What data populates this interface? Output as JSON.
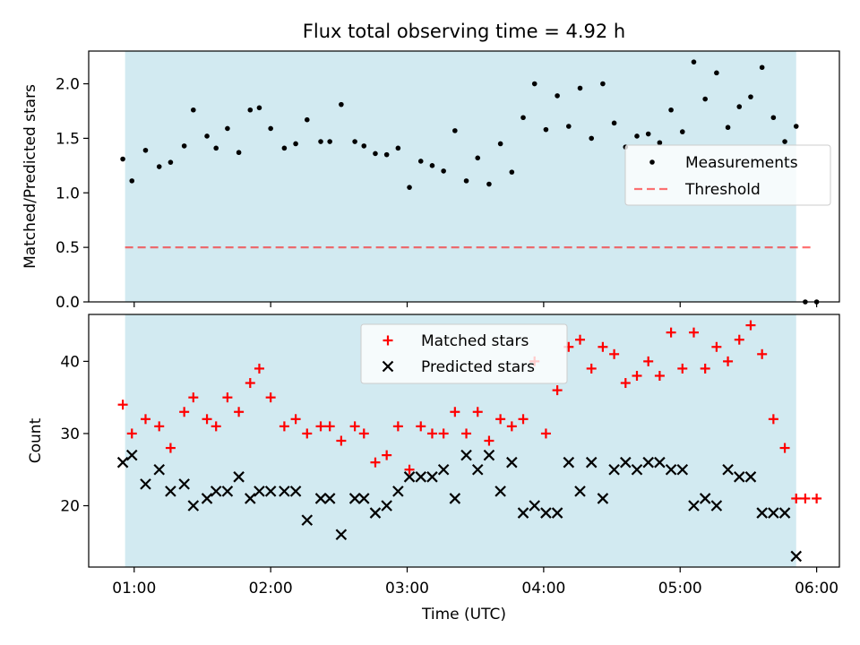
{
  "title": "Flux total observing time = 4.92 h",
  "xlabel": "Time (UTC)",
  "x_ticks": [
    "01:00",
    "02:00",
    "03:00",
    "04:00",
    "05:00",
    "06:00"
  ],
  "colors": {
    "shade": "#add8e6",
    "threshold": "#ff0000",
    "matched": "#ff0000",
    "predicted": "#000000",
    "measure": "#000000"
  },
  "chart_data": [
    {
      "type": "scatter",
      "ylabel": "Matched/Predicted stars",
      "ylim": [
        0,
        2.3
      ],
      "xlim": [
        "00:40",
        "06:10"
      ],
      "y_ticks": [
        "0.0",
        "0.5",
        "1.0",
        "1.5",
        "2.0"
      ],
      "observing_window": [
        "00:56",
        "05:51"
      ],
      "threshold": {
        "name": "Threshold",
        "value": 0.5,
        "x_range": [
          "00:56",
          "05:59"
        ]
      },
      "legend": {
        "position": "center-right",
        "entries": [
          "Measurements",
          "Threshold"
        ]
      },
      "series": [
        {
          "name": "Measurements",
          "x": [
            "00:55",
            "00:59",
            "01:05",
            "01:11",
            "01:16",
            "01:22",
            "01:26",
            "01:32",
            "01:36",
            "01:41",
            "01:46",
            "01:51",
            "01:55",
            "02:00",
            "02:06",
            "02:11",
            "02:16",
            "02:22",
            "02:26",
            "02:31",
            "02:37",
            "02:41",
            "02:46",
            "02:51",
            "02:56",
            "03:01",
            "03:06",
            "03:11",
            "03:16",
            "03:21",
            "03:26",
            "03:31",
            "03:36",
            "03:41",
            "03:46",
            "03:51",
            "03:56",
            "04:01",
            "04:06",
            "04:11",
            "04:16",
            "04:21",
            "04:26",
            "04:31",
            "04:36",
            "04:41",
            "04:46",
            "04:51",
            "04:56",
            "05:01",
            "05:06",
            "05:11",
            "05:16",
            "05:21",
            "05:26",
            "05:31",
            "05:36",
            "05:41",
            "05:46",
            "05:51",
            "05:55",
            "06:00"
          ],
          "y": [
            1.31,
            1.11,
            1.39,
            1.24,
            1.28,
            1.43,
            1.76,
            1.52,
            1.41,
            1.59,
            1.37,
            1.76,
            1.78,
            1.59,
            1.41,
            1.45,
            1.67,
            1.47,
            1.47,
            1.81,
            1.47,
            1.43,
            1.36,
            1.35,
            1.41,
            1.05,
            1.29,
            1.25,
            1.2,
            1.57,
            1.11,
            1.32,
            1.08,
            1.45,
            1.19,
            1.69,
            2.0,
            1.58,
            1.89,
            1.61,
            1.96,
            1.5,
            2.0,
            1.64,
            1.42,
            1.52,
            1.54,
            1.46,
            1.76,
            1.56,
            2.2,
            1.86,
            2.1,
            1.6,
            1.79,
            1.88,
            2.15,
            1.69,
            1.47,
            1.61,
            0.0,
            0.0
          ]
        }
      ]
    },
    {
      "type": "scatter",
      "ylabel": "Count",
      "ylim": [
        11.5,
        46.5
      ],
      "xlim": [
        "00:40",
        "06:10"
      ],
      "y_ticks": [
        "20",
        "30",
        "40"
      ],
      "observing_window": [
        "00:56",
        "05:51"
      ],
      "legend": {
        "position": "top-center",
        "entries": [
          "Matched stars",
          "Predicted stars"
        ]
      },
      "series": [
        {
          "name": "Matched stars",
          "x": [
            "00:55",
            "00:59",
            "01:05",
            "01:11",
            "01:16",
            "01:22",
            "01:26",
            "01:32",
            "01:36",
            "01:41",
            "01:46",
            "01:51",
            "01:55",
            "02:00",
            "02:06",
            "02:11",
            "02:16",
            "02:22",
            "02:26",
            "02:31",
            "02:37",
            "02:41",
            "02:46",
            "02:51",
            "02:56",
            "03:01",
            "03:06",
            "03:11",
            "03:16",
            "03:21",
            "03:26",
            "03:31",
            "03:36",
            "03:41",
            "03:46",
            "03:51",
            "03:56",
            "04:01",
            "04:06",
            "04:11",
            "04:16",
            "04:21",
            "04:26",
            "04:31",
            "04:36",
            "04:41",
            "04:46",
            "04:51",
            "04:56",
            "05:01",
            "05:06",
            "05:11",
            "05:16",
            "05:21",
            "05:26",
            "05:31",
            "05:36",
            "05:41",
            "05:46",
            "05:51",
            "05:55",
            "06:00"
          ],
          "y": [
            34,
            30,
            32,
            31,
            28,
            33,
            35,
            32,
            31,
            35,
            33,
            37,
            39,
            35,
            31,
            32,
            30,
            31,
            31,
            29,
            31,
            30,
            26,
            27,
            31,
            25,
            31,
            30,
            30,
            33,
            30,
            33,
            29,
            32,
            31,
            32,
            40,
            30,
            36,
            42,
            43,
            39,
            42,
            41,
            37,
            38,
            40,
            38,
            44,
            39,
            44,
            39,
            42,
            40,
            43,
            45,
            41,
            32,
            28,
            21,
            21,
            21
          ]
        },
        {
          "name": "Predicted stars",
          "x": [
            "00:55",
            "00:59",
            "01:05",
            "01:11",
            "01:16",
            "01:22",
            "01:26",
            "01:32",
            "01:36",
            "01:41",
            "01:46",
            "01:51",
            "01:55",
            "02:00",
            "02:06",
            "02:11",
            "02:16",
            "02:22",
            "02:26",
            "02:31",
            "02:37",
            "02:41",
            "02:46",
            "02:51",
            "02:56",
            "03:01",
            "03:06",
            "03:11",
            "03:16",
            "03:21",
            "03:26",
            "03:31",
            "03:36",
            "03:41",
            "03:46",
            "03:51",
            "03:56",
            "04:01",
            "04:06",
            "04:11",
            "04:16",
            "04:21",
            "04:26",
            "04:31",
            "04:36",
            "04:41",
            "04:46",
            "04:51",
            "04:56",
            "05:01",
            "05:06",
            "05:11",
            "05:16",
            "05:21",
            "05:26",
            "05:31",
            "05:36",
            "05:41",
            "05:46",
            "05:51"
          ],
          "y": [
            26,
            27,
            23,
            25,
            22,
            23,
            20,
            21,
            22,
            22,
            24,
            21,
            22,
            22,
            22,
            22,
            18,
            21,
            21,
            16,
            21,
            21,
            19,
            20,
            22,
            24,
            24,
            24,
            25,
            21,
            27,
            25,
            27,
            22,
            26,
            19,
            20,
            19,
            19,
            26,
            22,
            26,
            21,
            25,
            26,
            25,
            26,
            26,
            25,
            25,
            20,
            21,
            20,
            25,
            24,
            24,
            19,
            19,
            19,
            13
          ]
        }
      ]
    }
  ]
}
